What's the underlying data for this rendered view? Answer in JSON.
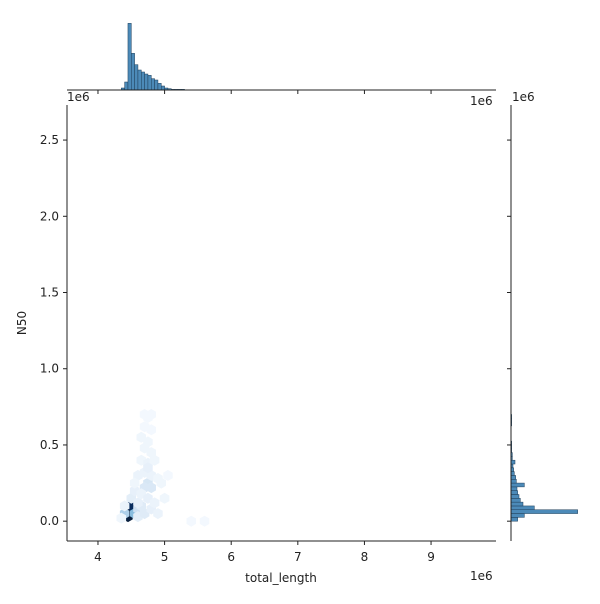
{
  "chart_data": {
    "type": "hexbin",
    "xlabel": "total_length",
    "ylabel": "N50",
    "x_offset_label": "1e6",
    "y_offset_label": "1e6",
    "top_marginal_offset_label": "1e6",
    "right_marginal_offset_label": "1e6",
    "xlim": [
      3.535,
      9.975
    ],
    "xticks": [
      4,
      5,
      6,
      7,
      8,
      9
    ],
    "ylim": [
      -0.13,
      2.73
    ],
    "yticks": [
      {
        "value": 0,
        "label": "0.0"
      },
      {
        "value": 0.5,
        "label": "0.5"
      },
      {
        "value": 1,
        "label": "1.0"
      },
      {
        "value": 1.5,
        "label": "1.5"
      },
      {
        "value": 2,
        "label": "2.0"
      },
      {
        "value": 2.5,
        "label": "2.5"
      }
    ],
    "colormap": [
      "#f7fbff",
      "#c6dbef",
      "#6baed6",
      "#2171b5",
      "#08306b",
      "#0b1620"
    ],
    "color_max": 60,
    "hexes": {
      "x": [
        4.45,
        4.5,
        4.45,
        4.55,
        4.4,
        4.6,
        4.75,
        4.7,
        4.8,
        4.65,
        4.5,
        4.6,
        4.7,
        4.8,
        4.9,
        4.55,
        4.65,
        4.75,
        4.85,
        4.6,
        4.7,
        4.8,
        4.9,
        4.65,
        4.75,
        4.85,
        4.7,
        4.8,
        4.65,
        4.75,
        4.7,
        4.8,
        4.75,
        4.7,
        4.8,
        4.75,
        4.35,
        4.4,
        5.0,
        4.95,
        5.05,
        4.55,
        4.6,
        5.4,
        5.6
      ],
      "y": [
        0.05,
        0.1,
        0.03,
        0.05,
        0.05,
        0.08,
        0.25,
        0.22,
        0.22,
        0.1,
        0.15,
        0.03,
        0.05,
        0.08,
        0.05,
        0.2,
        0.18,
        0.15,
        0.12,
        0.3,
        0.32,
        0.3,
        0.28,
        0.4,
        0.38,
        0.4,
        0.48,
        0.45,
        0.55,
        0.52,
        0.62,
        0.6,
        0.68,
        0.7,
        0.7,
        0.35,
        0.02,
        0.1,
        0.15,
        0.25,
        0.3,
        0.25,
        0.12,
        0.0,
        0.0
      ],
      "counts": [
        60,
        50,
        55,
        20,
        15,
        10,
        8,
        7,
        7,
        6,
        5,
        5,
        6,
        4,
        3,
        4,
        3,
        4,
        3,
        3,
        3,
        3,
        2,
        2,
        3,
        2,
        2,
        2,
        2,
        2,
        1,
        1,
        1,
        1,
        1,
        4,
        2,
        3,
        2,
        2,
        1,
        2,
        4,
        1,
        1
      ]
    },
    "top_hist": {
      "bins": [
        4.35,
        4.4,
        4.45,
        4.5,
        4.55,
        4.6,
        4.65,
        4.7,
        4.75,
        4.8,
        4.85,
        4.9,
        4.95,
        5.0,
        5.05,
        5.1,
        5.15,
        5.2,
        5.25,
        5.3
      ],
      "counts": [
        3,
        12,
        100,
        55,
        38,
        30,
        27,
        24,
        22,
        17,
        15,
        10,
        6,
        3,
        2,
        1,
        1,
        1,
        1
      ],
      "ylim": [
        0,
        105
      ],
      "color": "#4c8ab8"
    },
    "right_hist": {
      "bins": [
        0,
        0.025,
        0.05,
        0.075,
        0.1,
        0.125,
        0.15,
        0.175,
        0.2,
        0.225,
        0.25,
        0.275,
        0.3,
        0.325,
        0.35,
        0.375,
        0.4,
        0.425,
        0.45,
        0.475,
        0.5,
        0.525,
        0.55,
        0.575,
        0.6,
        0.625,
        0.65,
        0.675,
        0.7
      ],
      "counts": [
        10,
        20,
        100,
        35,
        18,
        14,
        12,
        10,
        9,
        20,
        8,
        7,
        5,
        4,
        3,
        6,
        2,
        2,
        1,
        1,
        1,
        0,
        0,
        0,
        0,
        1,
        1,
        1
      ],
      "xlim": [
        0,
        105
      ],
      "color": "#4c8ab8"
    }
  }
}
